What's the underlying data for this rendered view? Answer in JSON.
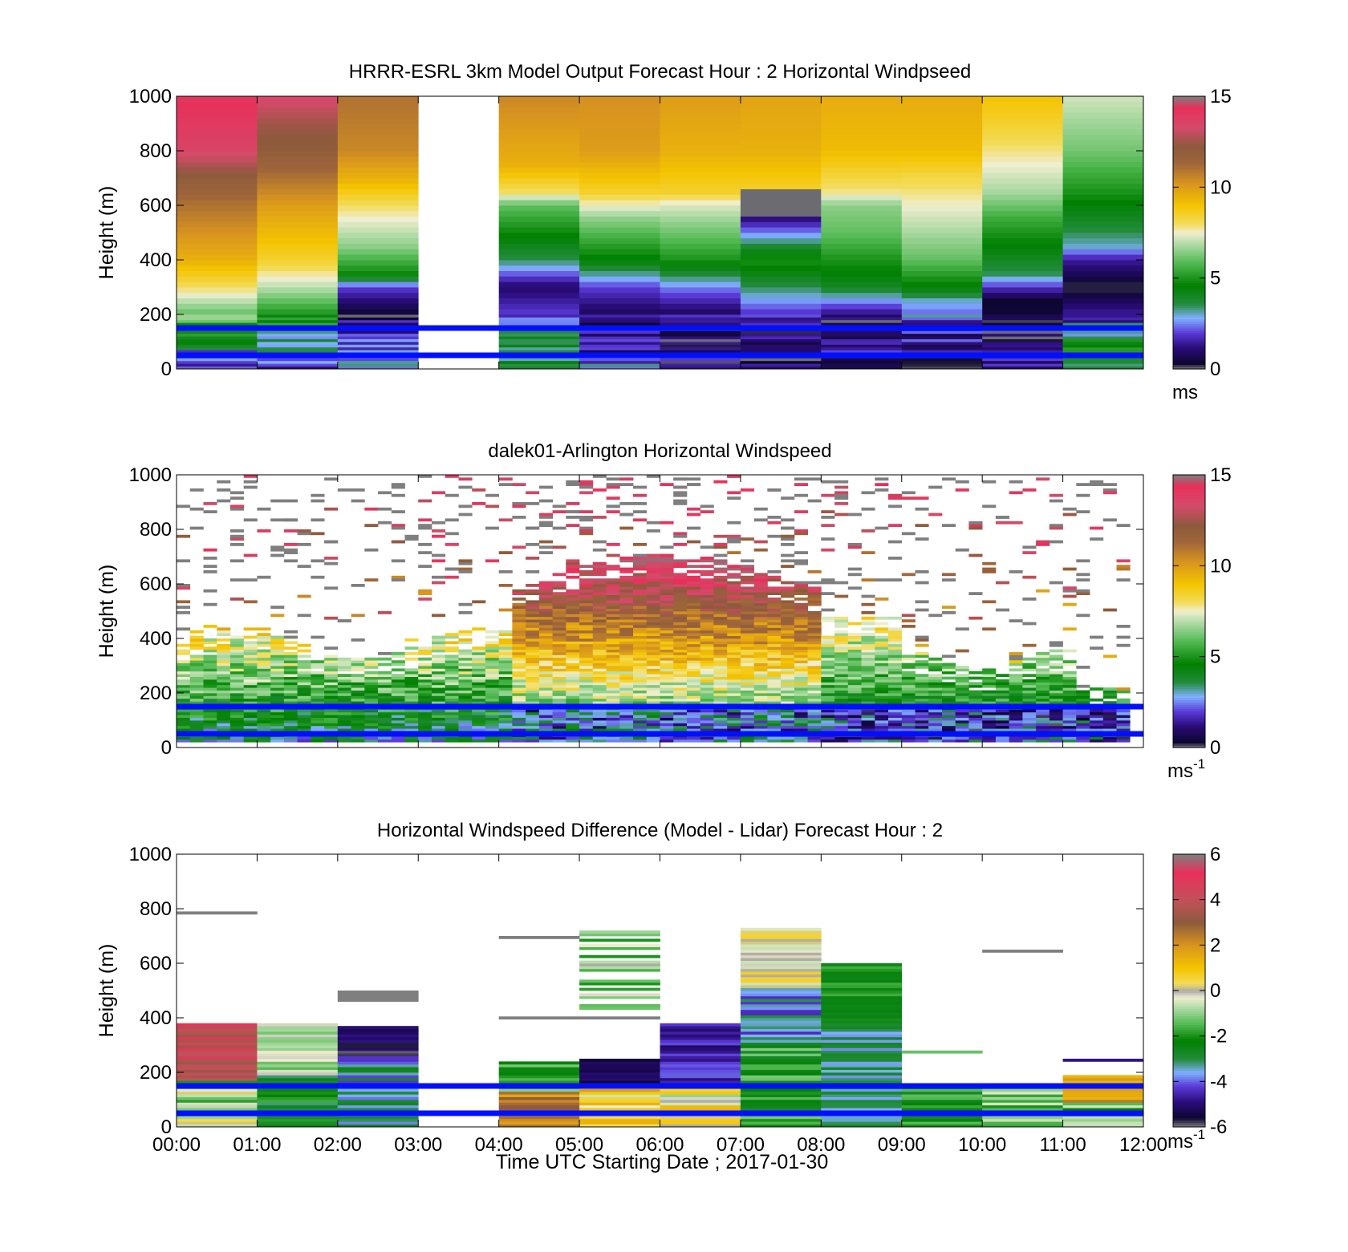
{
  "figure": {
    "x_label": "Time UTC  Starting Date ; 2017-01-30",
    "x_ticks": [
      "00:00",
      "01:00",
      "02:00",
      "03:00",
      "04:00",
      "05:00",
      "06:00",
      "07:00",
      "08:00",
      "09:00",
      "10:00",
      "11:00",
      "12:00"
    ],
    "y_label": "Height (m)",
    "y_ticks": [
      "0",
      "200",
      "400",
      "600",
      "800",
      "1000"
    ],
    "reference_line_color": "#0010ff",
    "reference_lines_m": [
      50,
      150
    ]
  },
  "chart_data": [
    {
      "type": "heatmap",
      "title": "HRRR-ESRL 3km Model Output   Forecast Hour : 2 Horizontal Windpseed",
      "xlabel": "",
      "ylabel": "Height (m)",
      "xlim": [
        0,
        12
      ],
      "ylim": [
        0,
        1000
      ],
      "colorbar": {
        "range": [
          0,
          15
        ],
        "ticks": [
          "0",
          "5",
          "10",
          "15"
        ],
        "unit": "ms"
      },
      "summary": "Hourly model columns (00:00-12:00, no data 03:00-04:00); speeds 1-15 m/s, strongest (13-14 m/s) aloft at 00:00-01:00, 8-11 m/s above 600 m, 0.5-3 m/s near the surface from 04:00 onward."
    },
    {
      "type": "heatmap",
      "title": "dalek01-Arlington  Horizontal Windspeed",
      "xlabel": "",
      "ylabel": "Height (m)",
      "xlim": [
        0,
        12
      ],
      "ylim": [
        0,
        1000
      ],
      "colorbar": {
        "range": [
          0,
          15
        ],
        "ticks": [
          "0",
          "5",
          "10",
          "15"
        ],
        "unit": "ms",
        "unit_sup": "-1"
      },
      "summary": "Lidar retrievals every 10 min; data mostly below 450 m with scattered returns up to 1000 m; 9-13 m/s between 300-700 m at 04:00-08:00; weak 1-3 m/s winds below 150 m after 04:00."
    },
    {
      "type": "heatmap",
      "title": "Horizontal Windspeed Difference (Model - Lidar) Forecast Hour : 2",
      "xlabel": "Time UTC  Starting Date ; 2017-01-30",
      "ylabel": "Height (m)",
      "xlim": [
        0,
        12
      ],
      "ylim": [
        0,
        1000
      ],
      "colorbar": {
        "range": [
          -6,
          6
        ],
        "ticks": [
          "-6",
          "-4",
          "-2",
          "0",
          "2",
          "4",
          "6"
        ],
        "unit": "ms",
        "unit_sup": "-1"
      },
      "summary": "Hourly differences; model 3-5 m/s too fast below 380 m at 00:00-01:00; model 2-6 m/s too slow between 150-600 m at 06:00-09:00; near-zero differences 500-730 m at 05:00-08:00."
    }
  ]
}
